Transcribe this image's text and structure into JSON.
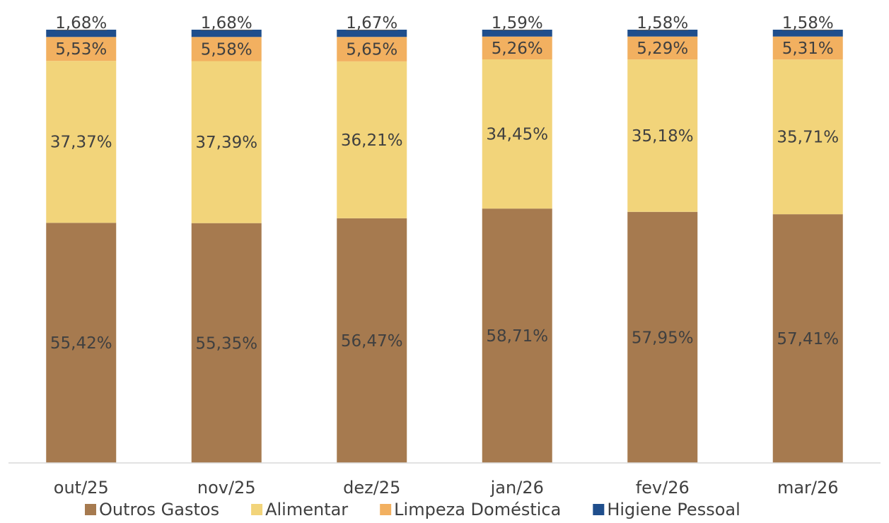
{
  "chart_data": {
    "type": "bar",
    "stacked": true,
    "percent_stacked": true,
    "title": "",
    "xlabel": "",
    "ylabel": "",
    "ylim": [
      0,
      100
    ],
    "grid": false,
    "legend_position": "bottom",
    "categories": [
      "out/25",
      "nov/25",
      "dez/25",
      "jan/26",
      "fev/26",
      "mar/26"
    ],
    "series": [
      {
        "name": "Outros Gastos",
        "color": "#a67a4f",
        "values": [
          55.42,
          55.35,
          56.47,
          58.71,
          57.95,
          57.41
        ],
        "labels": [
          "55,42%",
          "55,35%",
          "56,47%",
          "58,71%",
          "57,95%",
          "57,41%"
        ]
      },
      {
        "name": "Alimentar",
        "color": "#f2d47a",
        "values": [
          37.37,
          37.39,
          36.21,
          34.45,
          35.18,
          35.71
        ],
        "labels": [
          "37,37%",
          "37,39%",
          "36,21%",
          "34,45%",
          "35,18%",
          "35,71%"
        ]
      },
      {
        "name": "Limpeza Doméstica",
        "color": "#f2b060",
        "values": [
          5.53,
          5.58,
          5.65,
          5.26,
          5.29,
          5.31
        ],
        "labels": [
          "5,53%",
          "5,58%",
          "5,65%",
          "5,26%",
          "5,29%",
          "5,31%"
        ]
      },
      {
        "name": "Higiene Pessoal",
        "color": "#1f4e8c",
        "values": [
          1.68,
          1.68,
          1.67,
          1.59,
          1.58,
          1.58
        ],
        "labels": [
          "1,68%",
          "1,68%",
          "1,67%",
          "1,59%",
          "1,58%",
          "1,58%"
        ]
      }
    ]
  }
}
